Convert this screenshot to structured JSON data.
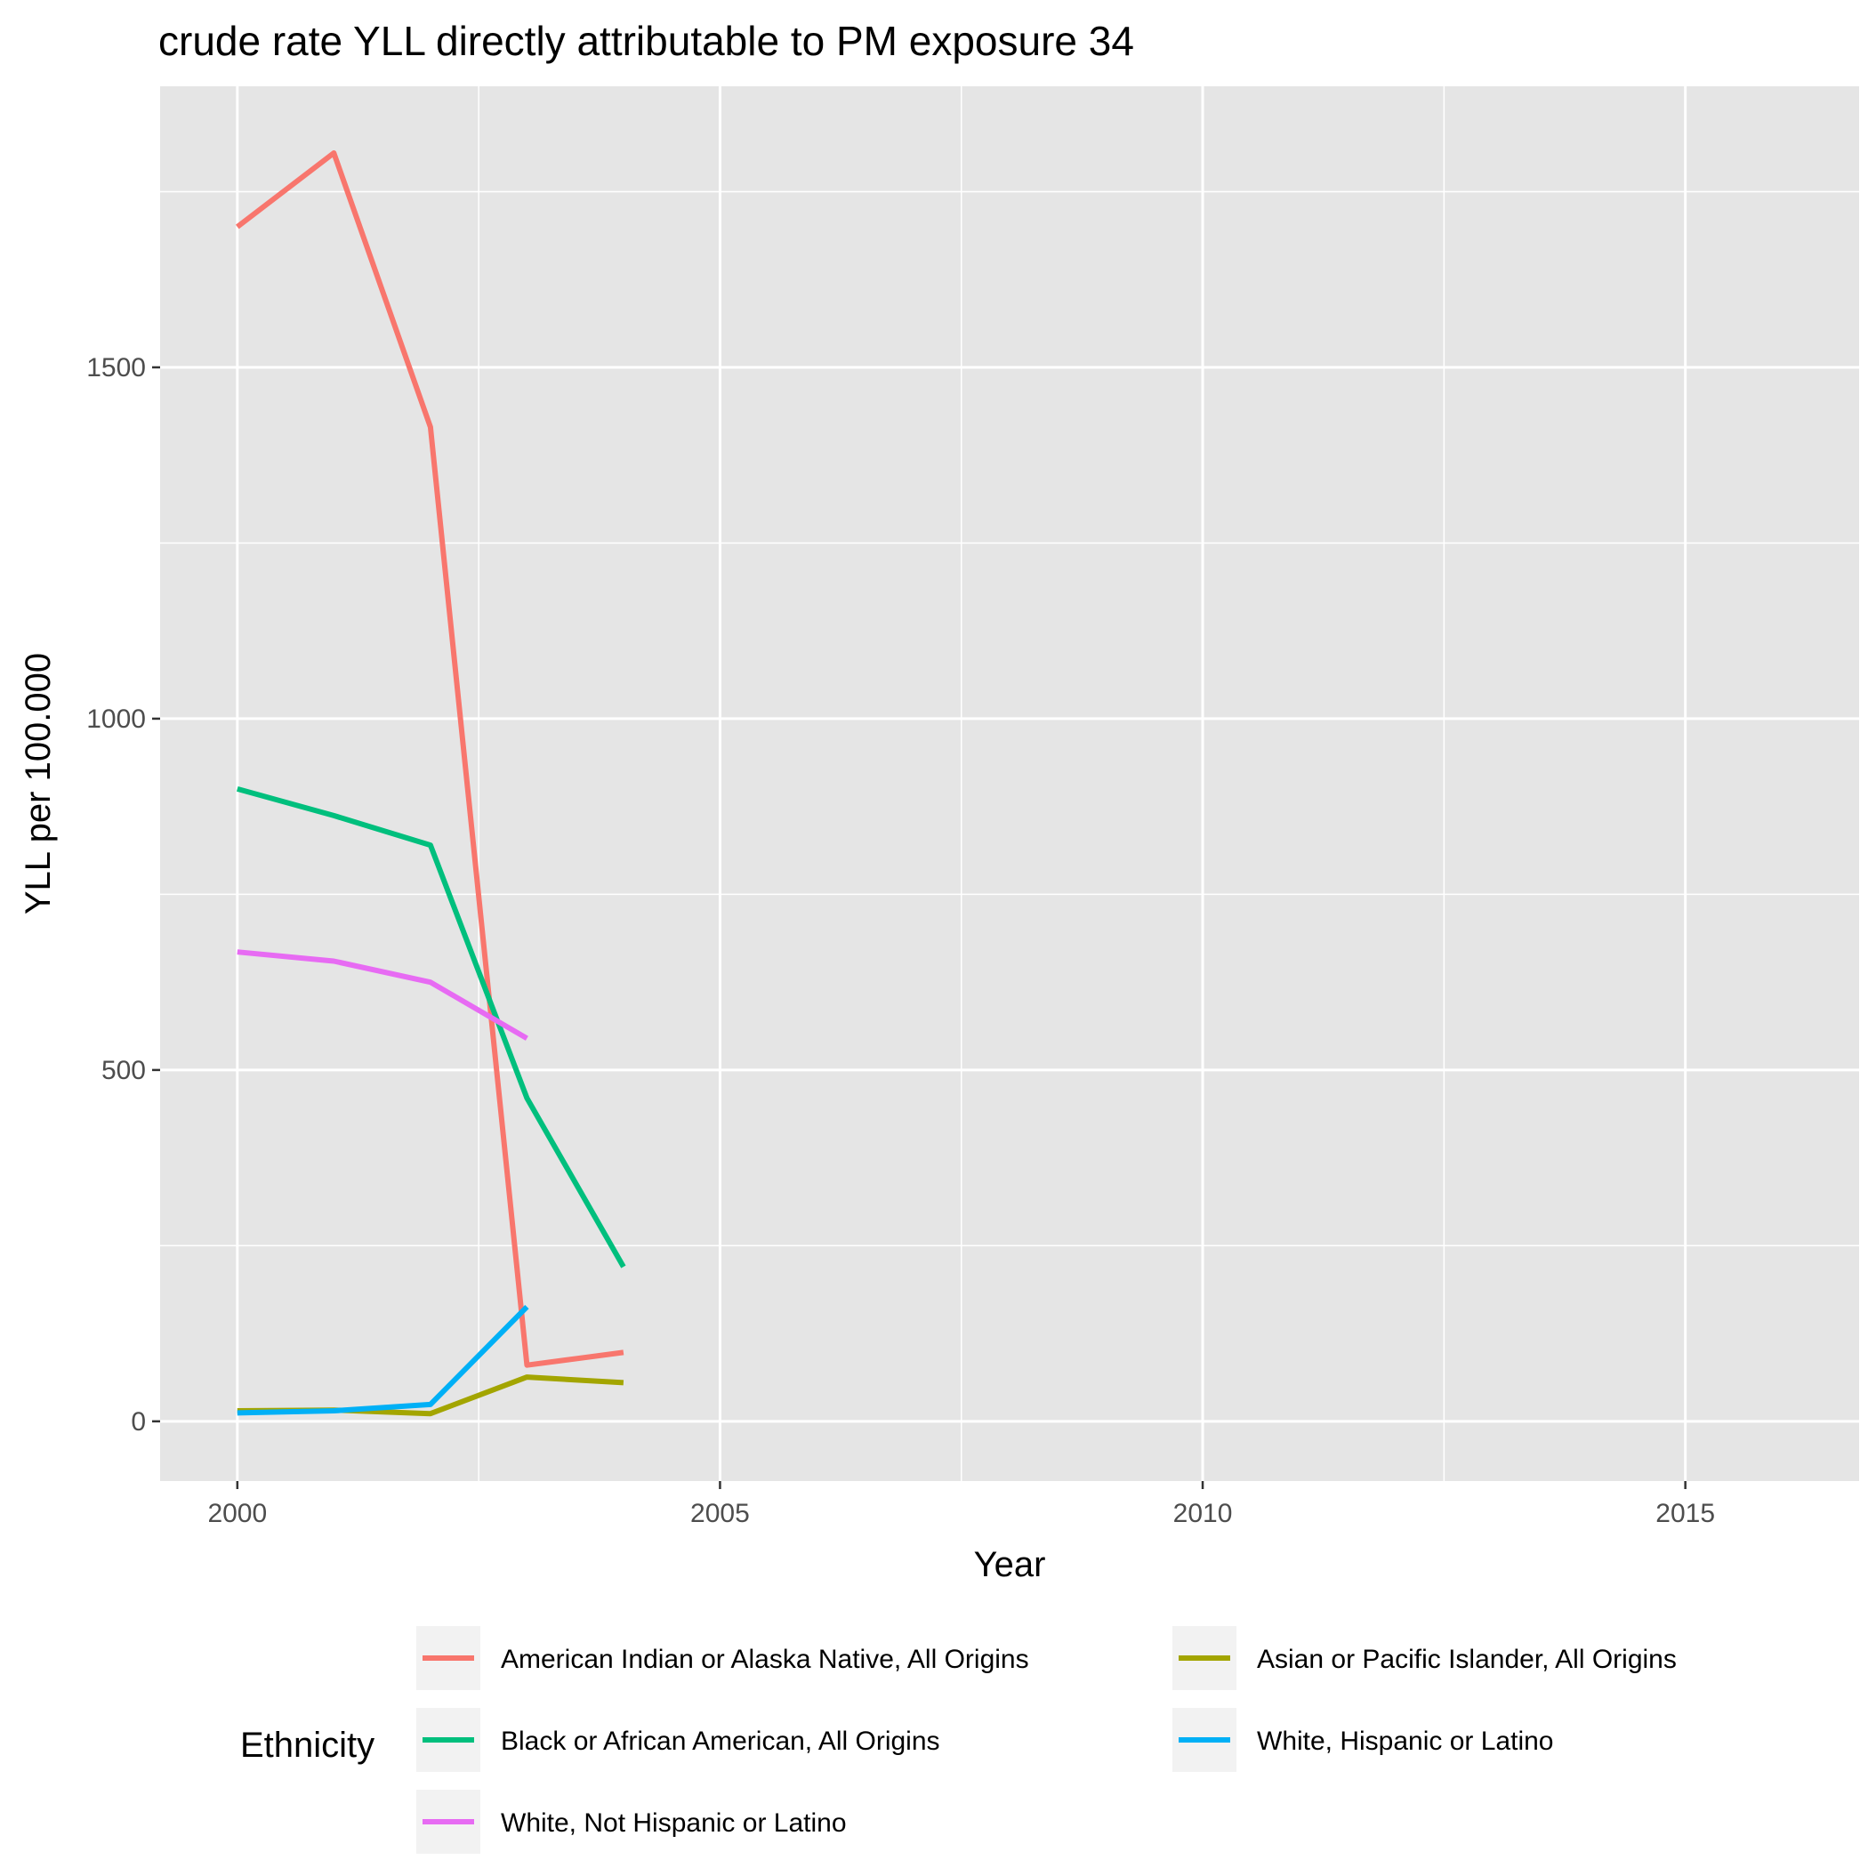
{
  "chart_data": {
    "type": "line",
    "title": "crude rate YLL directly attributable to PM exposure 34",
    "xlabel": "Year",
    "ylabel": "YLL per 100.000",
    "xlim": [
      1999.2,
      2016.8
    ],
    "ylim": [
      -85,
      1900
    ],
    "x_ticks": [
      2000,
      2005,
      2010,
      2015
    ],
    "y_ticks": [
      0,
      500,
      1000,
      1500
    ],
    "grid": true,
    "legend": {
      "title": "Ethnicity",
      "position": "bottom"
    },
    "series": [
      {
        "name": "American Indian or Alaska Native, All Origins",
        "color": "#f8766d",
        "x": [
          2000,
          2001,
          2002,
          2003,
          2004
        ],
        "y": [
          1700,
          1805,
          1415,
          80,
          98
        ]
      },
      {
        "name": "Asian or Pacific Islander, All Origins",
        "color": "#a3a500",
        "x": [
          2000,
          2001,
          2002,
          2003,
          2004
        ],
        "y": [
          15,
          16,
          11,
          63,
          55
        ]
      },
      {
        "name": "Black or African American, All Origins",
        "color": "#00bf7d",
        "x": [
          2000,
          2001,
          2002,
          2003,
          2004
        ],
        "y": [
          900,
          862,
          820,
          460,
          220
        ]
      },
      {
        "name": "White, Hispanic or Latino",
        "color": "#00b0f6",
        "x": [
          2000,
          2001,
          2002,
          2003
        ],
        "y": [
          12,
          15,
          24,
          163
        ]
      },
      {
        "name": "White, Not Hispanic or Latino",
        "color": "#e76bf3",
        "x": [
          2000,
          2001,
          2002,
          2003
        ],
        "y": [
          668,
          655,
          625,
          545
        ]
      }
    ]
  }
}
